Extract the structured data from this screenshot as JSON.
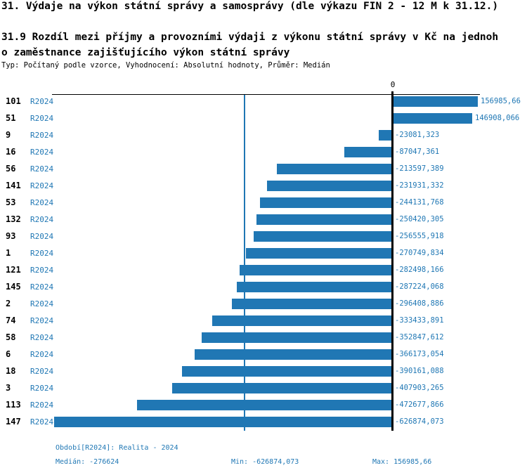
{
  "header": {
    "title": "31. Výdaje na výkon státní správy a samosprávy (dle výkazu FIN 2 - 12 M k 31.12.)",
    "subtitle_line1": "31.9 Rozdíl mezi příjmy a provozními výdaji z výkonu státní správy v Kč na jednoh",
    "subtitle_line2": "o zaměstnance zajišťujícího výkon státní správy",
    "meta": "Typ: Počítaný podle vzorce, Vyhodnocení: Absolutní hodnoty, Průměr: Medián"
  },
  "chart_data": {
    "type": "bar",
    "orientation": "horizontal",
    "zero_tick_label": "0",
    "categories": [
      "101",
      "51",
      "9",
      "16",
      "56",
      "141",
      "53",
      "132",
      "93",
      "1",
      "121",
      "145",
      "2",
      "74",
      "58",
      "6",
      "18",
      "3",
      "113",
      "147"
    ],
    "period_link_label": "R2024",
    "values": [
      156985.66,
      146908.066,
      -23081.323,
      -87047.361,
      -213597.389,
      -231931.332,
      -244131.768,
      -250420.305,
      -256555.918,
      -270749.834,
      -282498.166,
      -287224.068,
      -296408.886,
      -333433.891,
      -352847.612,
      -366173.054,
      -390161.088,
      -407903.265,
      -472677.866,
      -626874.073
    ],
    "value_labels": [
      "156985,66",
      "146908,066",
      "-23081,323",
      "-87047,361",
      "-213597,389",
      "-231931,332",
      "-244131,768",
      "-250420,305",
      "-256555,918",
      "-270749,834",
      "-282498,166",
      "-287224,068",
      "-296408,886",
      "-333433,891",
      "-352847,612",
      "-366173,054",
      "-390161,088",
      "-407903,265",
      "-472677,866",
      "-626874,073"
    ],
    "median_value": -276624,
    "min_value": -626874.073,
    "max_value": 156985.66,
    "xlim": [
      -633000,
      163000
    ],
    "grid": false,
    "bar_color": "#2077b4",
    "median_line_color": "#1f77b4",
    "text_blue": "#1f77b4",
    "axis_color": "#000000"
  },
  "footer": {
    "period": "Období[R2024]: Realita - 2024",
    "median": "Medián: -276624",
    "min": "Min: -626874,073",
    "max": "Max: 156985,66"
  }
}
